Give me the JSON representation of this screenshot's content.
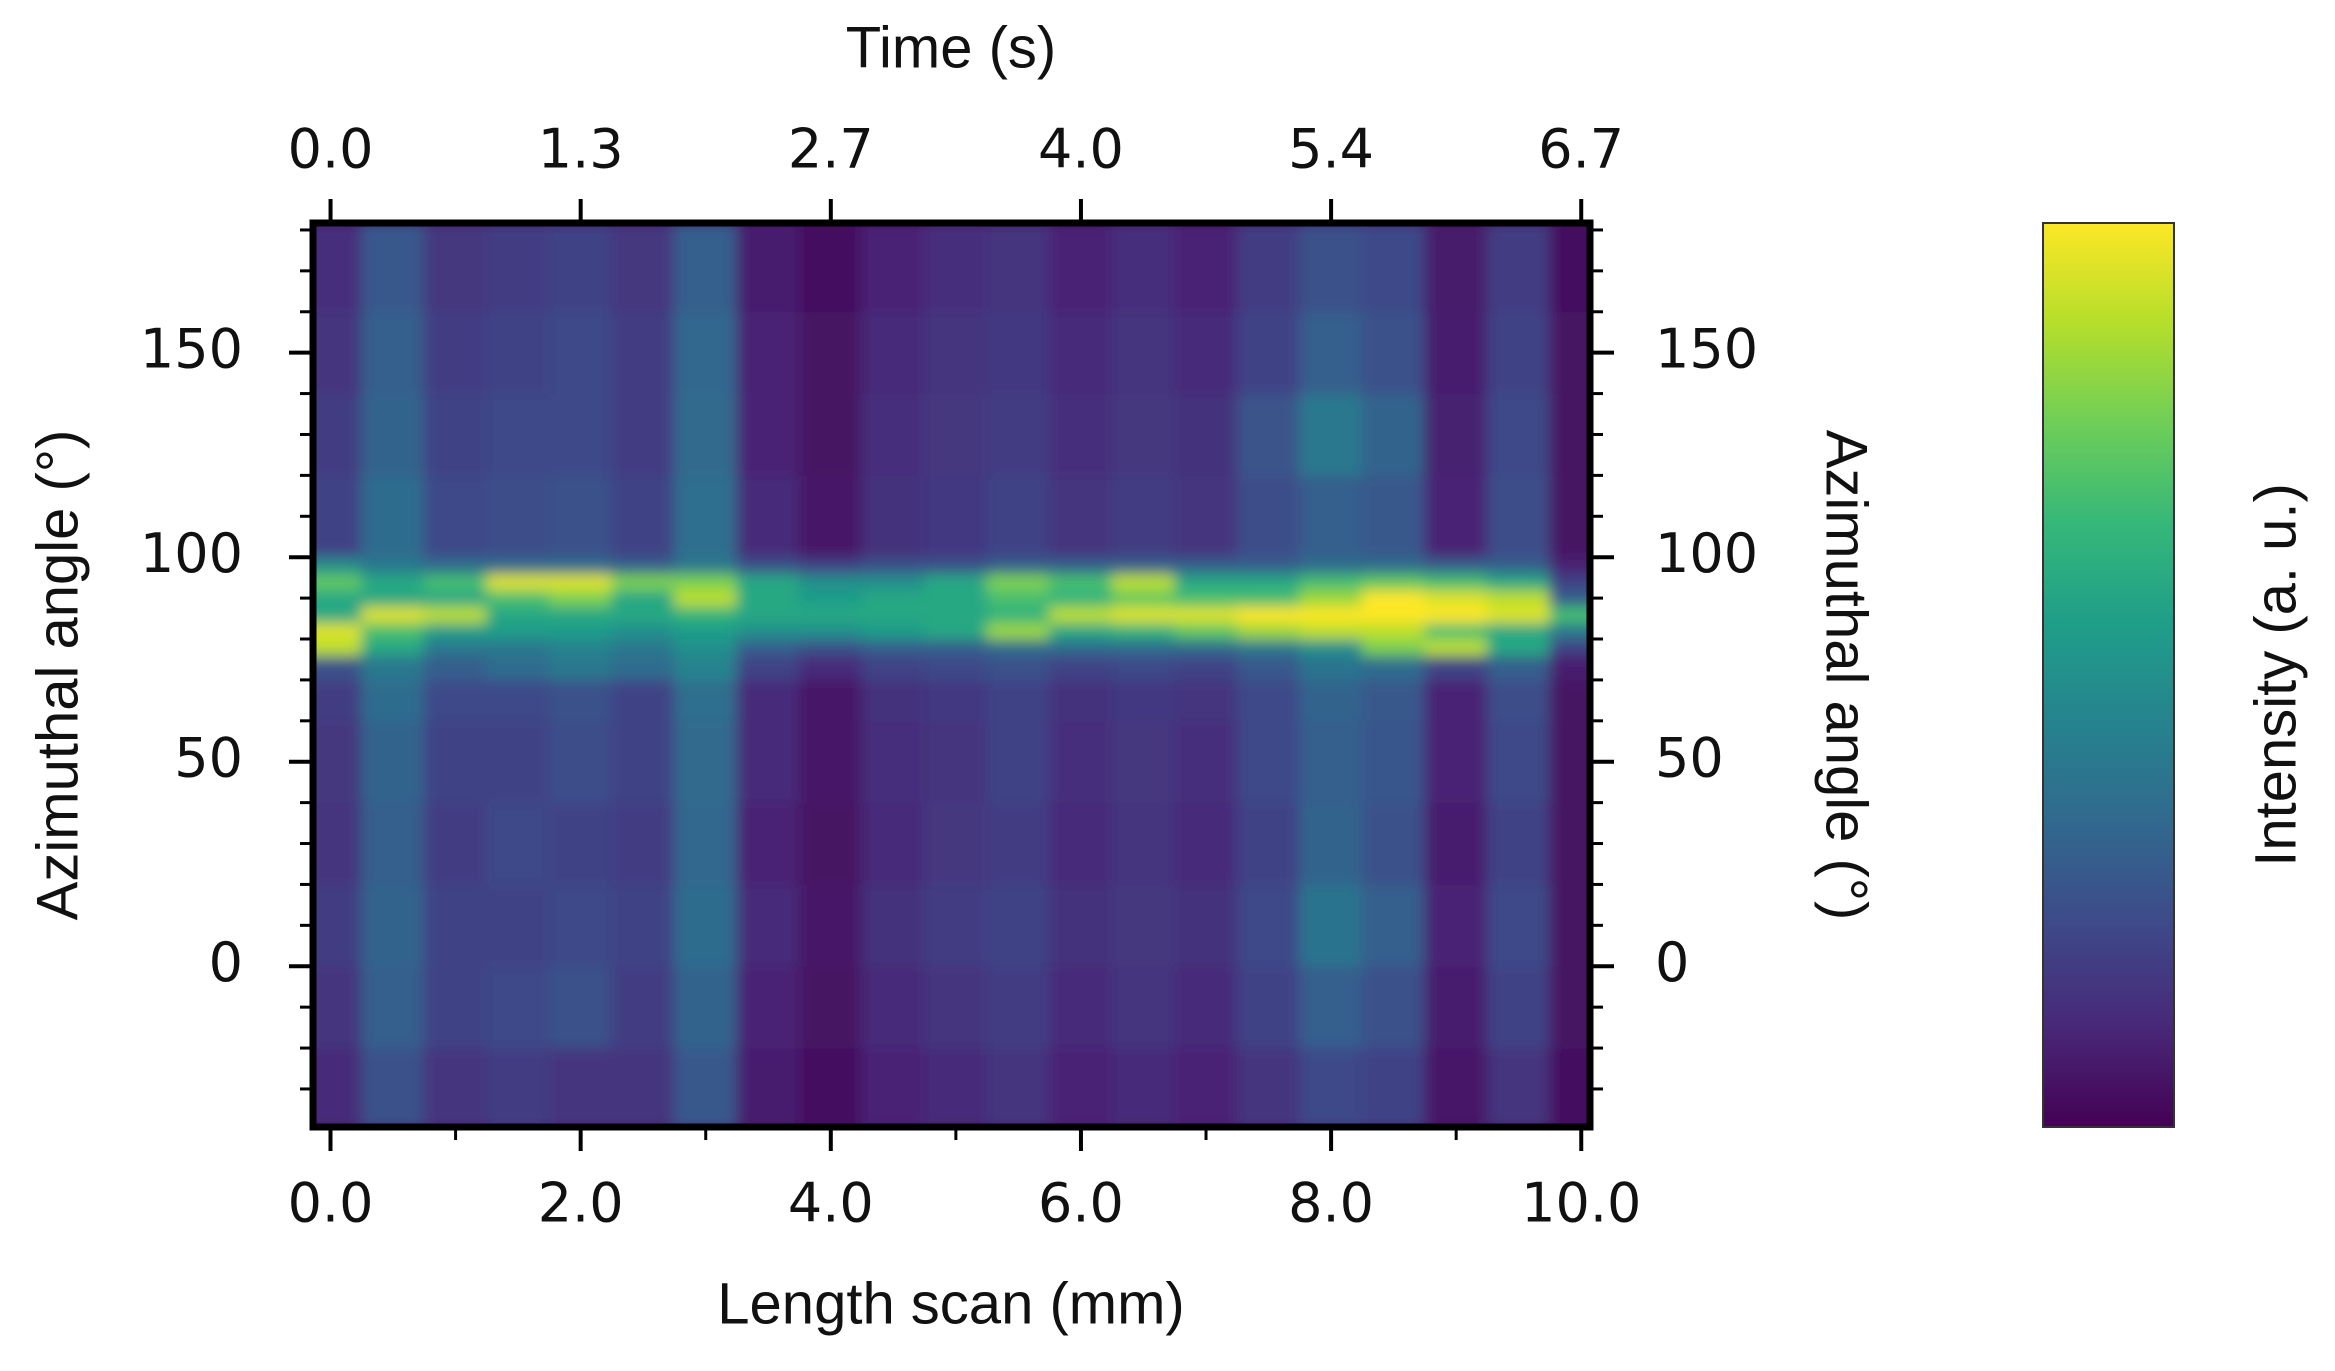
{
  "chart_data": {
    "type": "heatmap",
    "xlabel": "Length scan (mm)",
    "x2label": "Time (s)",
    "ylabel": "Azimuthal angle (°)",
    "y2label": "Azimuthal angle (°)",
    "colorbar_label": "Intensity (a. u.)",
    "xlim": [
      -0.14,
      10.07
    ],
    "xticks": [
      {
        "value": 0,
        "label": "0.0"
      },
      {
        "value": 2,
        "label": "2.0"
      },
      {
        "value": 4,
        "label": "4.0"
      },
      {
        "value": 6,
        "label": "6.0"
      },
      {
        "value": 8,
        "label": "8.0"
      },
      {
        "value": 10,
        "label": "10.0"
      }
    ],
    "xminorticks": [
      1,
      3,
      5,
      7,
      9
    ],
    "x2lim": [
      -0.094,
      6.747
    ],
    "x2ticks": [
      {
        "value": 0,
        "label": "0.0"
      },
      {
        "value": 1.34,
        "label": "1.3"
      },
      {
        "value": 2.68,
        "label": "2.7"
      },
      {
        "value": 4.02,
        "label": "4.0"
      },
      {
        "value": 5.36,
        "label": "5.4"
      },
      6.7
    ],
    "ylim": [
      -39.3,
      181.7
    ],
    "yticks": [
      0,
      50,
      100,
      150
    ],
    "yminorticks": [
      -30,
      -20,
      -10,
      10,
      20,
      30,
      40,
      60,
      70,
      80,
      90,
      110,
      120,
      130,
      140,
      160,
      170,
      180
    ],
    "y2ticks": [
      0,
      50,
      100,
      150
    ],
    "zlim": [
      0,
      1
    ],
    "colorscale": [
      "#440154",
      "#482878",
      "#3e4989",
      "#31688e",
      "#26828e",
      "#1f9e89",
      "#35b779",
      "#6ece58",
      "#b5de2b",
      "#fde725"
    ],
    "xbins": [
      -0.25,
      0.25,
      0.75,
      1.25,
      1.75,
      2.25,
      2.75,
      3.25,
      3.75,
      4.25,
      4.75,
      5.25,
      5.75,
      6.25,
      6.75,
      7.25,
      7.75,
      8.25,
      8.75,
      9.25,
      9.75,
      10.25
    ],
    "ybins": [
      -40,
      -20,
      0,
      20,
      40,
      60,
      70,
      76,
      80,
      84,
      88,
      92,
      96,
      100,
      120,
      140,
      160,
      182
    ],
    "z": [
      [
        0.12,
        0.25,
        0.15,
        0.18,
        0.15,
        0.15,
        0.28,
        0.08,
        0.04,
        0.1,
        0.12,
        0.15,
        0.1,
        0.12,
        0.1,
        0.15,
        0.22,
        0.2,
        0.06,
        0.15,
        0.04
      ],
      [
        0.15,
        0.3,
        0.2,
        0.22,
        0.25,
        0.18,
        0.32,
        0.1,
        0.05,
        0.12,
        0.15,
        0.18,
        0.12,
        0.15,
        0.12,
        0.2,
        0.3,
        0.25,
        0.08,
        0.2,
        0.05
      ],
      [
        0.18,
        0.32,
        0.2,
        0.2,
        0.22,
        0.2,
        0.35,
        0.12,
        0.06,
        0.14,
        0.18,
        0.2,
        0.14,
        0.16,
        0.14,
        0.22,
        0.38,
        0.3,
        0.1,
        0.22,
        0.05
      ],
      [
        0.15,
        0.3,
        0.18,
        0.22,
        0.2,
        0.18,
        0.33,
        0.1,
        0.05,
        0.12,
        0.16,
        0.18,
        0.12,
        0.15,
        0.12,
        0.2,
        0.32,
        0.25,
        0.08,
        0.2,
        0.05
      ],
      [
        0.16,
        0.32,
        0.2,
        0.2,
        0.24,
        0.2,
        0.34,
        0.12,
        0.06,
        0.13,
        0.15,
        0.2,
        0.13,
        0.16,
        0.13,
        0.22,
        0.3,
        0.27,
        0.1,
        0.22,
        0.05
      ],
      [
        0.18,
        0.35,
        0.22,
        0.22,
        0.25,
        0.2,
        0.36,
        0.12,
        0.06,
        0.14,
        0.17,
        0.2,
        0.14,
        0.17,
        0.15,
        0.22,
        0.32,
        0.28,
        0.1,
        0.24,
        0.05
      ],
      [
        0.25,
        0.4,
        0.3,
        0.35,
        0.4,
        0.35,
        0.45,
        0.2,
        0.12,
        0.2,
        0.22,
        0.25,
        0.2,
        0.22,
        0.2,
        0.28,
        0.38,
        0.35,
        0.2,
        0.3,
        0.08
      ],
      [
        0.9,
        0.6,
        0.4,
        0.4,
        0.45,
        0.4,
        0.5,
        0.3,
        0.25,
        0.3,
        0.3,
        0.35,
        0.35,
        0.35,
        0.35,
        0.4,
        0.5,
        0.8,
        0.9,
        0.6,
        0.2
      ],
      [
        0.95,
        0.7,
        0.55,
        0.55,
        0.55,
        0.5,
        0.55,
        0.5,
        0.5,
        0.55,
        0.6,
        0.85,
        0.6,
        0.65,
        0.75,
        0.85,
        0.9,
        0.9,
        0.7,
        0.6,
        0.4
      ],
      [
        0.6,
        0.95,
        0.9,
        0.6,
        0.6,
        0.6,
        0.65,
        0.6,
        0.6,
        0.6,
        0.6,
        0.65,
        0.9,
        0.95,
        0.95,
        1,
        1,
        1,
        1,
        0.95,
        0.7
      ],
      [
        0.6,
        0.6,
        0.6,
        0.7,
        0.8,
        0.6,
        0.9,
        0.6,
        0.55,
        0.6,
        0.6,
        0.7,
        0.65,
        0.75,
        0.7,
        0.7,
        0.85,
        1,
        0.95,
        0.9,
        0.3
      ],
      [
        0.75,
        0.6,
        0.7,
        0.95,
        0.95,
        0.8,
        0.8,
        0.6,
        0.5,
        0.5,
        0.6,
        0.8,
        0.7,
        0.9,
        0.6,
        0.6,
        0.7,
        0.75,
        0.7,
        0.6,
        0.2
      ],
      [
        0.5,
        0.4,
        0.35,
        0.35,
        0.35,
        0.3,
        0.4,
        0.25,
        0.2,
        0.25,
        0.25,
        0.3,
        0.3,
        0.3,
        0.3,
        0.3,
        0.35,
        0.35,
        0.3,
        0.3,
        0.1
      ],
      [
        0.2,
        0.35,
        0.22,
        0.24,
        0.25,
        0.2,
        0.36,
        0.12,
        0.06,
        0.14,
        0.17,
        0.2,
        0.15,
        0.18,
        0.15,
        0.24,
        0.3,
        0.28,
        0.1,
        0.24,
        0.05
      ],
      [
        0.18,
        0.32,
        0.2,
        0.22,
        0.22,
        0.18,
        0.34,
        0.1,
        0.05,
        0.13,
        0.16,
        0.18,
        0.13,
        0.16,
        0.14,
        0.26,
        0.4,
        0.32,
        0.09,
        0.22,
        0.05
      ],
      [
        0.15,
        0.3,
        0.18,
        0.2,
        0.22,
        0.18,
        0.33,
        0.1,
        0.05,
        0.12,
        0.15,
        0.17,
        0.12,
        0.15,
        0.12,
        0.2,
        0.3,
        0.25,
        0.08,
        0.2,
        0.05
      ],
      [
        0.13,
        0.28,
        0.16,
        0.18,
        0.2,
        0.16,
        0.3,
        0.08,
        0.04,
        0.1,
        0.13,
        0.15,
        0.1,
        0.13,
        0.1,
        0.18,
        0.25,
        0.22,
        0.07,
        0.18,
        0.04
      ]
    ]
  }
}
